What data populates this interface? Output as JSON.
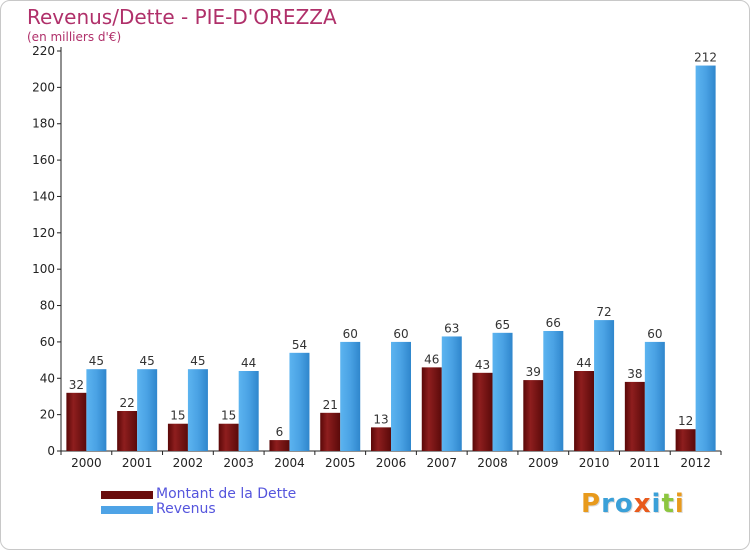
{
  "header": {
    "title": "Revenus/Dette - PIE-D'OREZZA",
    "subtitle": "(en milliers d'€)"
  },
  "legend": {
    "items": [
      {
        "label": "Montant de la Dette",
        "color": "#7a1010"
      },
      {
        "label": "Revenus",
        "color": "#4ea3e6"
      }
    ]
  },
  "logo": {
    "text": "Proxiti",
    "letters": [
      {
        "ch": "P",
        "color": "#e89a1c"
      },
      {
        "ch": "r",
        "color": "#3aa0d8"
      },
      {
        "ch": "o",
        "color": "#3aa0d8"
      },
      {
        "ch": "x",
        "color": "#e85a1c"
      },
      {
        "ch": "i",
        "color": "#3aa0d8"
      },
      {
        "ch": "t",
        "color": "#8cc63f"
      },
      {
        "ch": "i",
        "color": "#e89a1c"
      }
    ]
  },
  "chart_data": {
    "type": "bar",
    "title": "Revenus/Dette - PIE-D'OREZZA",
    "subtitle": "(en milliers d'€)",
    "xlabel": "",
    "ylabel": "",
    "categories": [
      "2000",
      "2001",
      "2002",
      "2003",
      "2004",
      "2005",
      "2006",
      "2007",
      "2008",
      "2009",
      "2010",
      "2011",
      "2012"
    ],
    "series": [
      {
        "name": "Montant de la Dette",
        "color": "#7a1010",
        "values": [
          32,
          22,
          15,
          15,
          6,
          21,
          13,
          46,
          43,
          39,
          44,
          38,
          12
        ]
      },
      {
        "name": "Revenus",
        "color": "#4ea3e6",
        "values": [
          45,
          45,
          45,
          44,
          54,
          60,
          60,
          63,
          65,
          66,
          72,
          60,
          212
        ]
      }
    ],
    "ylim": [
      0,
      220
    ],
    "yticks": [
      0,
      20,
      40,
      60,
      80,
      100,
      120,
      140,
      160,
      180,
      200,
      220
    ],
    "grid": false,
    "legend_position": "bottom-left",
    "data_labels": true
  }
}
